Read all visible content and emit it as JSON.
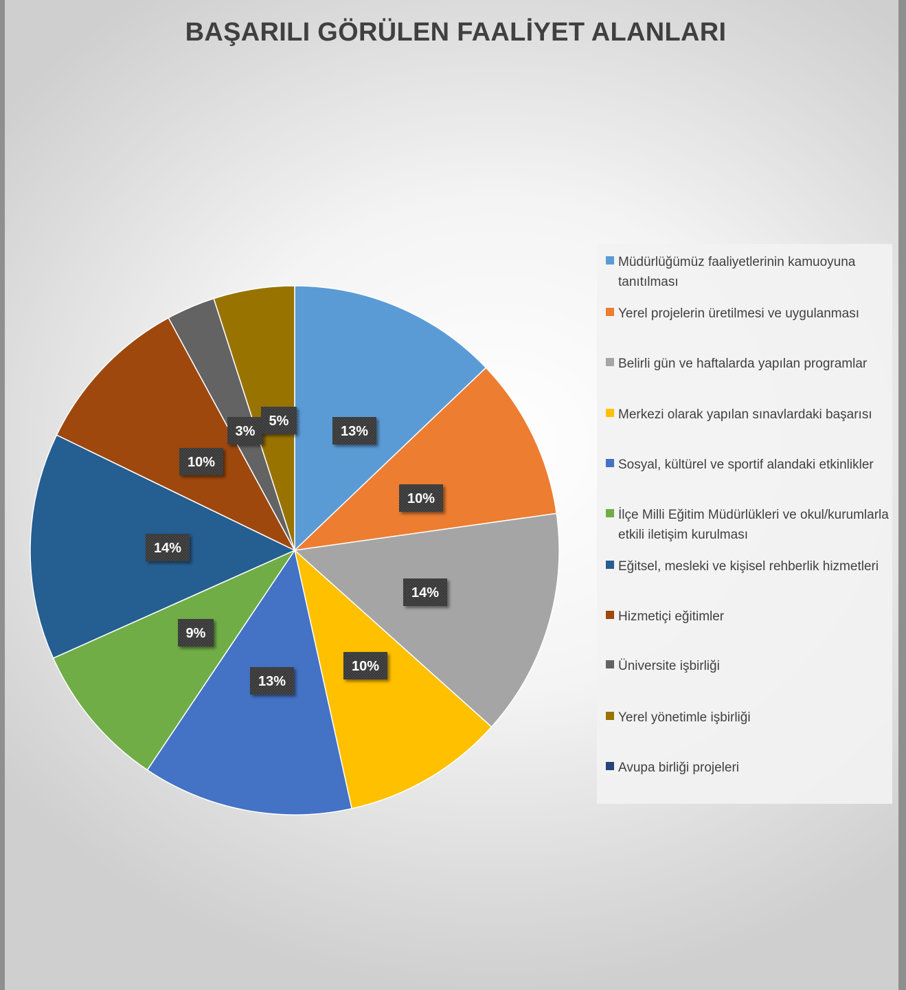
{
  "chart_data": {
    "type": "pie",
    "title": "BAŞARILI GÖRÜLEN FAALİYET ALANLARI",
    "legend_position": "right",
    "slices": [
      {
        "name": "Müdürlüğümüz faaliyetlerinin kamuoyuna tanıtılması",
        "value": 13,
        "label": "13%",
        "color": "#5b9bd5"
      },
      {
        "name": "Yerel projelerin üretilmesi ve uygulanması",
        "value": 10,
        "label": "10%",
        "color": "#ed7d31"
      },
      {
        "name": "Belirli gün ve haftalarda yapılan programlar",
        "value": 14,
        "label": "14%",
        "color": "#a5a5a5"
      },
      {
        "name": "Merkezi olarak yapılan sınavlardaki başarısı",
        "value": 10,
        "label": "10%",
        "color": "#ffc000"
      },
      {
        "name": "Sosyal, kültürel ve sportif alandaki etkinlikler",
        "value": 13,
        "label": "13%",
        "color": "#4472c4"
      },
      {
        "name": "İlçe Milli Eğitim Müdürlükleri ve okul/kurumlarla etkili iletişim kurulması",
        "value": 9,
        "label": "9%",
        "color": "#70ad47"
      },
      {
        "name": "Eğitsel, mesleki ve kişisel rehberlik hizmetleri",
        "value": 14,
        "label": "14%",
        "color": "#255e91"
      },
      {
        "name": "Hizmetiçi eğitimler",
        "value": 10,
        "label": "10%",
        "color": "#9e480e"
      },
      {
        "name": "Üniversite işbirliği",
        "value": 3,
        "label": "3%",
        "color": "#636363"
      },
      {
        "name": "Yerel yönetimle işbirliği",
        "value": 5,
        "label": "5%",
        "color": "#997300"
      },
      {
        "name": "Avupa birliği projeleri",
        "value": 0,
        "label": "",
        "color": "#264478"
      }
    ]
  }
}
